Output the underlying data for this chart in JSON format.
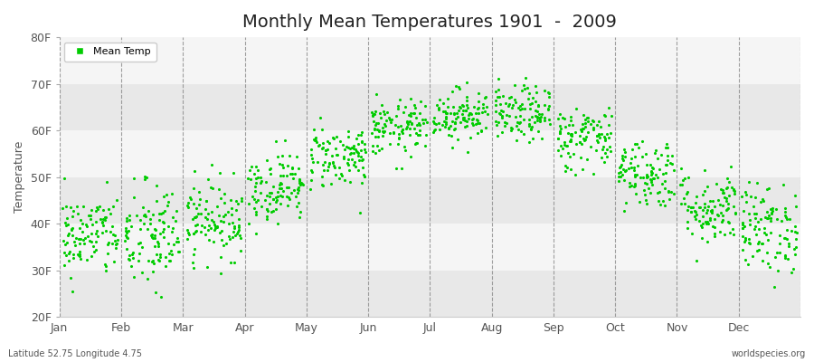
{
  "title": "Monthly Mean Temperatures 1901  -  2009",
  "ylabel": "Temperature",
  "ytick_labels": [
    "20F",
    "30F",
    "40F",
    "50F",
    "60F",
    "70F",
    "80F"
  ],
  "ytick_values": [
    20,
    30,
    40,
    50,
    60,
    70,
    80
  ],
  "ylim": [
    20,
    80
  ],
  "months": [
    "Jan",
    "Feb",
    "Mar",
    "Apr",
    "May",
    "Jun",
    "Jul",
    "Aug",
    "Sep",
    "Oct",
    "Nov",
    "Dec"
  ],
  "dot_color": "#00cc00",
  "bg_color": "#ffffff",
  "band_color_light": "#f5f5f5",
  "band_color_dark": "#e8e8e8",
  "title_fontsize": 14,
  "legend_label": "Mean Temp",
  "subtitle_left": "Latitude 52.75 Longitude 4.75",
  "subtitle_right": "worldspecies.org",
  "monthly_means_F": [
    37.5,
    37.0,
    41.0,
    48.0,
    54.5,
    60.5,
    63.5,
    63.5,
    58.5,
    51.0,
    43.5,
    39.0
  ],
  "monthly_stds_F": [
    4.5,
    6.0,
    4.2,
    3.8,
    3.5,
    3.0,
    2.8,
    3.0,
    3.5,
    3.8,
    4.0,
    4.8
  ],
  "n_years": 109,
  "seed": 42
}
